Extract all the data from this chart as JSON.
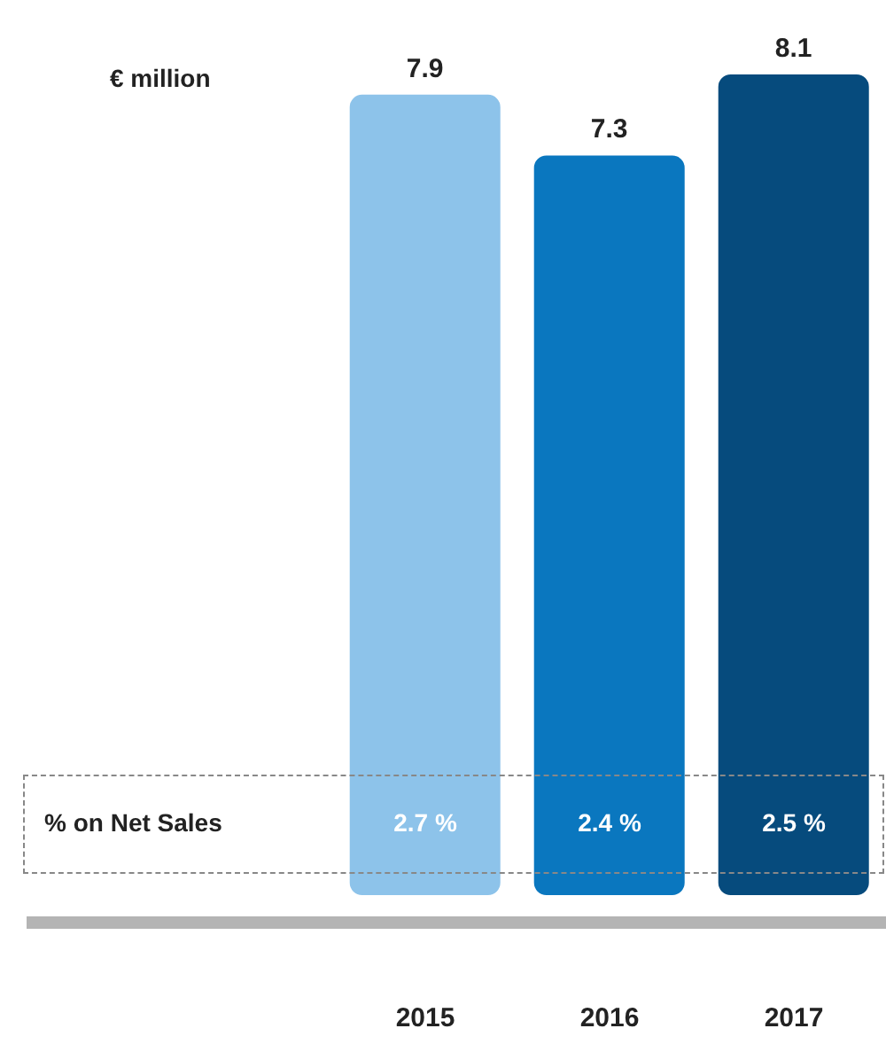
{
  "chart_data": {
    "type": "bar",
    "ylabel": "€ million",
    "categories": [
      "2015",
      "2016",
      "2017"
    ],
    "values": [
      7.9,
      7.3,
      8.1
    ],
    "colors": [
      "#8dc3ea",
      "#0a77bf",
      "#064b7d"
    ],
    "ylim": [
      0,
      8.1
    ],
    "data_labels": true,
    "tick_labels": "x",
    "annotations": [
      "% on Net Sales",
      "2.7 %",
      "2.4 %",
      "2.5 %"
    ]
  }
}
